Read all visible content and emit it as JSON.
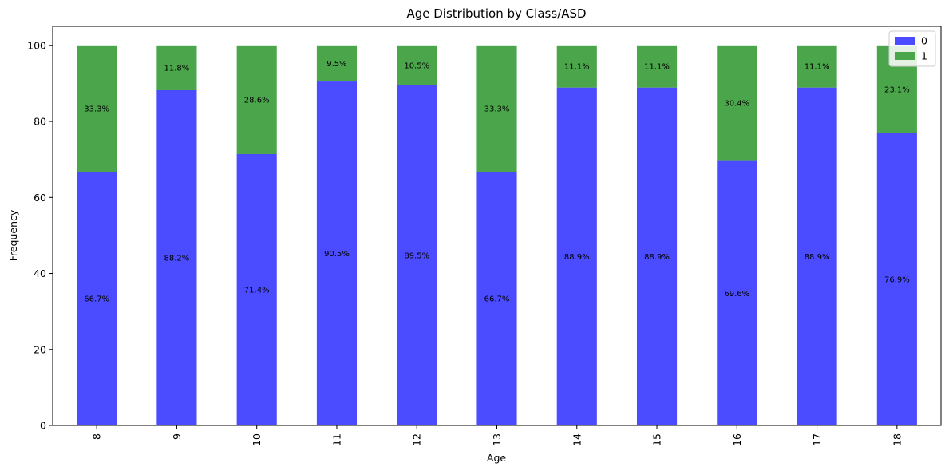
{
  "chart_data": {
    "type": "bar",
    "stacked": true,
    "title": "Age Distribution by Class/ASD",
    "xlabel": "Age",
    "ylabel": "Frequency",
    "ylim": [
      0,
      105
    ],
    "yticks": [
      0,
      20,
      40,
      60,
      80,
      100
    ],
    "grid": false,
    "legend_position": "top-right",
    "categories": [
      "8",
      "9",
      "10",
      "11",
      "12",
      "13",
      "14",
      "15",
      "16",
      "17",
      "18"
    ],
    "series": [
      {
        "name": "0",
        "color": "#4b4bff",
        "values": [
          66.7,
          88.2,
          71.4,
          90.5,
          89.5,
          66.7,
          88.9,
          88.9,
          69.6,
          88.9,
          76.9
        ],
        "labels": [
          "66.7%",
          "88.2%",
          "71.4%",
          "90.5%",
          "89.5%",
          "66.7%",
          "88.9%",
          "88.9%",
          "69.6%",
          "88.9%",
          "76.9%"
        ]
      },
      {
        "name": "1",
        "color": "#4ba64b",
        "values": [
          33.3,
          11.8,
          28.6,
          9.5,
          10.5,
          33.3,
          11.1,
          11.1,
          30.4,
          11.1,
          23.1
        ],
        "labels": [
          "33.3%",
          "11.8%",
          "28.6%",
          "9.5%",
          "10.5%",
          "33.3%",
          "11.1%",
          "11.1%",
          "30.4%",
          "11.1%",
          "23.1%"
        ]
      }
    ]
  }
}
